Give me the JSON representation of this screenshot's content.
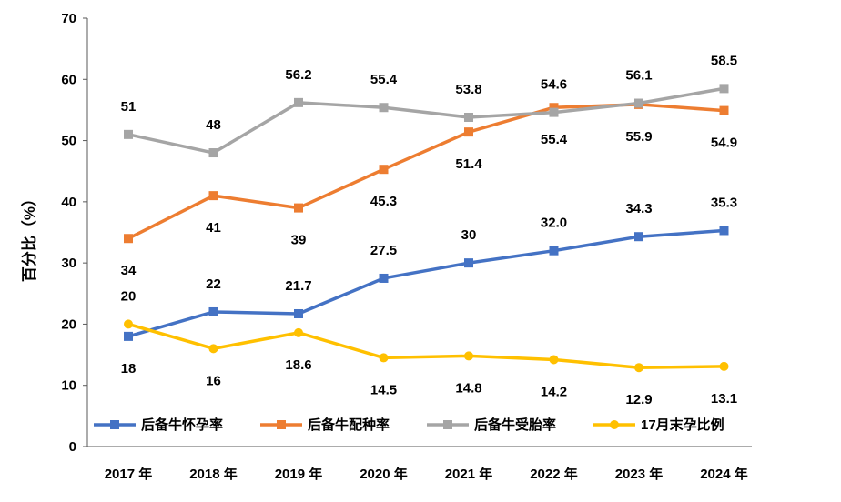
{
  "chart_data": {
    "type": "line",
    "title": "",
    "xlabel": "",
    "ylabel": "百分比（%）",
    "ylim": [
      0,
      70
    ],
    "yticks": [
      0,
      10,
      20,
      30,
      40,
      50,
      60,
      70
    ],
    "grid": false,
    "legend_position": "bottom-inside",
    "categories": [
      "2017 年",
      "2018 年",
      "2019 年",
      "2020 年",
      "2021 年",
      "2022 年",
      "2023 年",
      "2024 年"
    ],
    "series": [
      {
        "name": "后备牛怀孕率",
        "color": "#4472C4",
        "marker": "square",
        "values": [
          18,
          22,
          21.7,
          27.5,
          30,
          32.0,
          34.3,
          35.3
        ],
        "labels": [
          "18",
          "22",
          "21.7",
          "27.5",
          "30",
          "32.0",
          "34.3",
          "35.3"
        ],
        "label_side": [
          "below",
          "above",
          "above",
          "above",
          "above",
          "above",
          "above",
          "above"
        ]
      },
      {
        "name": "后备牛配种率",
        "color": "#ED7D31",
        "marker": "square",
        "values": [
          34,
          41,
          39,
          45.3,
          51.4,
          55.4,
          55.9,
          54.9
        ],
        "labels": [
          "34",
          "41",
          "39",
          "45.3",
          "51.4",
          "55.4",
          "55.9",
          "54.9"
        ],
        "label_side": [
          "below",
          "below",
          "below",
          "below",
          "below",
          "below",
          "below",
          "below"
        ]
      },
      {
        "name": "后备牛受胎率",
        "color": "#A5A5A5",
        "marker": "square",
        "values": [
          51,
          48,
          56.2,
          55.4,
          53.8,
          54.6,
          56.1,
          58.5
        ],
        "labels": [
          "51",
          "48",
          "56.2",
          "55.4",
          "53.8",
          "54.6",
          "56.1",
          "58.5"
        ],
        "label_side": [
          "above",
          "above",
          "above",
          "above",
          "above",
          "above",
          "above",
          "above"
        ]
      },
      {
        "name": "17月末孕比例",
        "color": "#FFC000",
        "marker": "circle",
        "values": [
          20,
          16,
          18.6,
          14.5,
          14.8,
          14.2,
          12.9,
          13.1
        ],
        "labels": [
          "20",
          "16",
          "18.6",
          "14.5",
          "14.8",
          "14.2",
          "12.9",
          "13.1"
        ],
        "label_side": [
          "above",
          "below",
          "below",
          "below",
          "below",
          "below",
          "below",
          "below"
        ]
      }
    ]
  }
}
